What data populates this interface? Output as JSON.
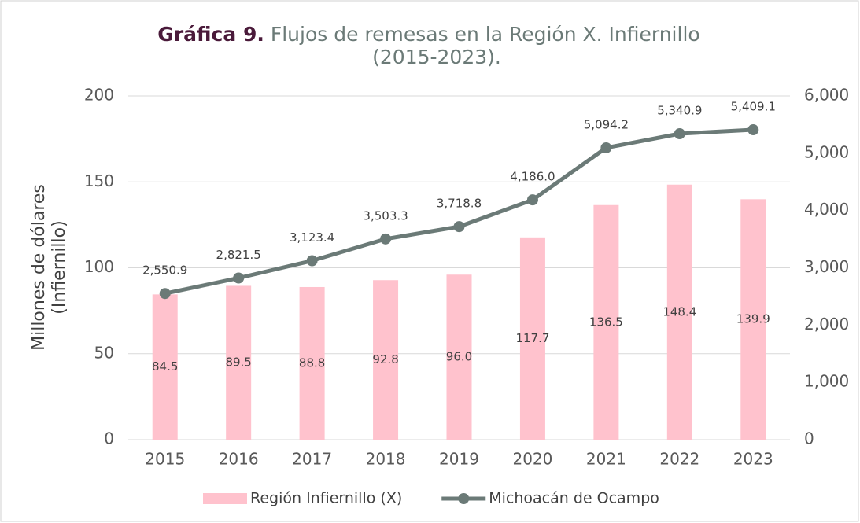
{
  "chart_data": {
    "type": "bar_line",
    "title": {
      "label": "Gráfica 9.",
      "lines": [
        "Flujos de remesas en la Región X. Infiernillo",
        "(2015-2023)."
      ]
    },
    "ylabel": [
      "Millones de dólares",
      "(Infiernillo)"
    ],
    "categories": [
      "2015",
      "2016",
      "2017",
      "2018",
      "2019",
      "2020",
      "2021",
      "2022",
      "2023"
    ],
    "series": [
      {
        "name": "Región Infiernillo (X)",
        "type": "bar",
        "color": "#ffc2cd",
        "axis": "y",
        "values": [
          84.5,
          89.5,
          88.8,
          92.8,
          96.0,
          117.7,
          136.5,
          148.4,
          139.9
        ],
        "value_labels": [
          "84.5",
          "89.5",
          "88.8",
          "92.8",
          "96.0",
          "117.7",
          "136.5",
          "148.4",
          "139.9"
        ]
      },
      {
        "name": "Michoacán de Ocampo",
        "type": "line",
        "color": "#6b7a77",
        "axis": "y2",
        "values": [
          2550.9,
          2821.5,
          3123.4,
          3503.3,
          3718.8,
          4186.0,
          5094.2,
          5340.9,
          5409.1
        ],
        "value_labels": [
          "2,550.9",
          "2,821.5",
          "3,123.4",
          "3,503.3",
          "3,718.8",
          "4,186.0",
          "5,094.2",
          "5,340.9",
          "5,409.1"
        ]
      }
    ],
    "ylim": [
      0,
      200
    ],
    "yticks": [
      0,
      50,
      100,
      150,
      200
    ],
    "y2lim": [
      0,
      6000
    ],
    "y2ticks": [
      0,
      {
        "value": 1000,
        "label": "1,000"
      },
      {
        "value": 2000,
        "label": "2,000"
      },
      {
        "value": 3000,
        "label": "3,000"
      },
      {
        "value": 4000,
        "label": "4,000"
      },
      {
        "value": 5000,
        "label": "5,000"
      },
      {
        "value": 6000,
        "label": "6,000"
      }
    ],
    "grid": true,
    "legend": "bottom"
  }
}
